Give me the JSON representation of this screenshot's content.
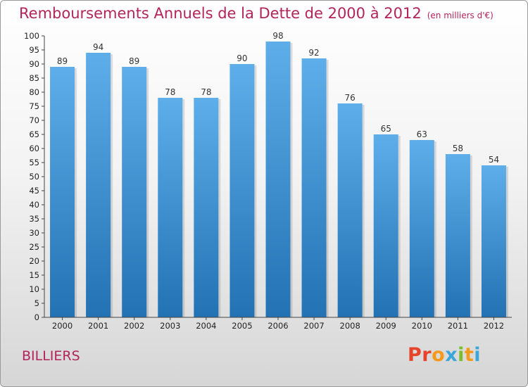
{
  "title": "Remboursements Annuels de la Dette de 2000 à 2012",
  "unit": "(en milliers d'€)",
  "commune": "BILLIERS",
  "logo": {
    "letters": [
      "P",
      "r",
      "o",
      "x",
      "i",
      "t",
      "i"
    ],
    "colors": [
      "#e6432a",
      "#e6432a",
      "#f39a1c",
      "#3aa6d9",
      "#7cbd2c",
      "#f39a1c",
      "#3aa6d9"
    ]
  },
  "colors": {
    "accent": "#b3245a",
    "bar_top": "#5eaeea",
    "bar_bottom": "#2272b4"
  },
  "chart_data": {
    "type": "bar",
    "title": "Remboursements Annuels de la Dette de 2000 à 2012",
    "categories": [
      "2000",
      "2001",
      "2002",
      "2003",
      "2004",
      "2005",
      "2006",
      "2007",
      "2008",
      "2009",
      "2010",
      "2011",
      "2012"
    ],
    "values": [
      89,
      94,
      89,
      78,
      78,
      90,
      98,
      92,
      76,
      65,
      63,
      58,
      54
    ],
    "ylim": [
      0,
      100
    ],
    "yticks": [
      0,
      5,
      10,
      15,
      20,
      25,
      30,
      35,
      40,
      45,
      50,
      55,
      60,
      65,
      70,
      75,
      80,
      85,
      90,
      95,
      100
    ],
    "grid": false
  }
}
